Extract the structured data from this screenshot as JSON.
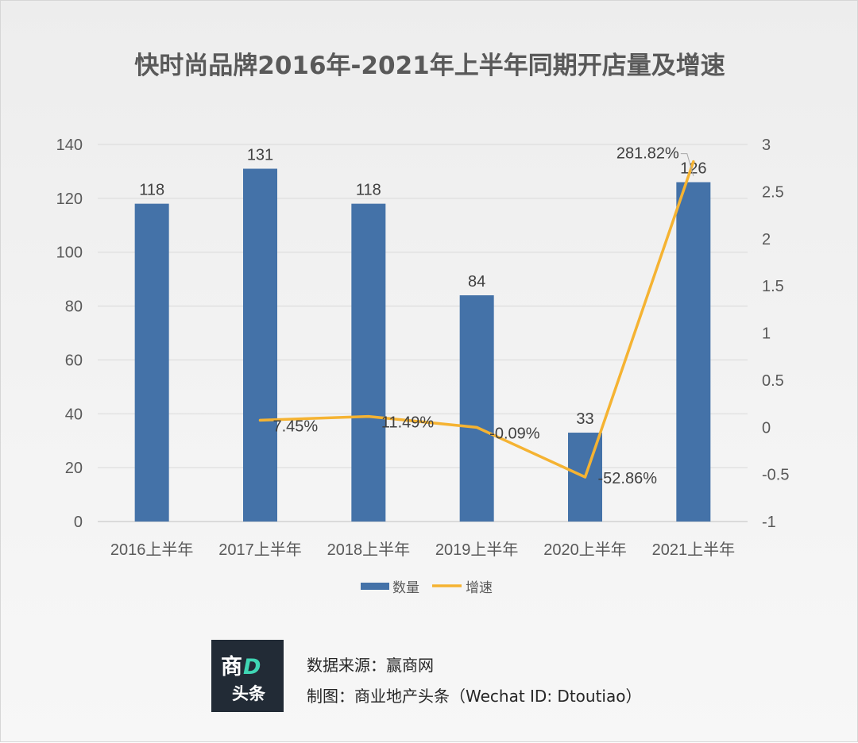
{
  "chart_data": {
    "type": "bar",
    "title": "快时尚品牌2016年-2021年上半年同期开店量及增速",
    "categories": [
      "2016上半年",
      "2017上半年",
      "2018上半年",
      "2019上半年",
      "2020上半年",
      "2021上半年"
    ],
    "series": [
      {
        "name": "数量",
        "type": "bar",
        "axis": "left",
        "color": "#4472a8",
        "values": [
          118,
          131,
          118,
          84,
          33,
          126
        ],
        "labels": [
          "118",
          "131",
          "118",
          "84",
          "33",
          "126"
        ]
      },
      {
        "name": "增速",
        "type": "line",
        "axis": "right",
        "color": "#f5b332",
        "values": [
          null,
          0.0745,
          0.1149,
          -0.0009,
          -0.5286,
          2.8182
        ],
        "labels": [
          "",
          "7.45%",
          "11.49%",
          "-0.09%",
          "-52.86%",
          "281.82%"
        ]
      }
    ],
    "y_left": {
      "min": 0,
      "max": 140,
      "ticks": [
        "0",
        "20",
        "40",
        "60",
        "80",
        "100",
        "120",
        "140"
      ]
    },
    "y_right": {
      "min": -1,
      "max": 3,
      "ticks": [
        "-1",
        "-0.5",
        "0",
        "0.5",
        "1",
        "1.5",
        "2",
        "2.5",
        "3"
      ]
    },
    "grid": true,
    "legend": "bottom"
  },
  "footer": {
    "logo_line1_a": "商",
    "logo_line1_b": "D",
    "logo_line2": "头条",
    "source": "数据来源：赢商网",
    "credit": "制图：商业地产头条（Wechat ID: Dtoutiao）"
  }
}
